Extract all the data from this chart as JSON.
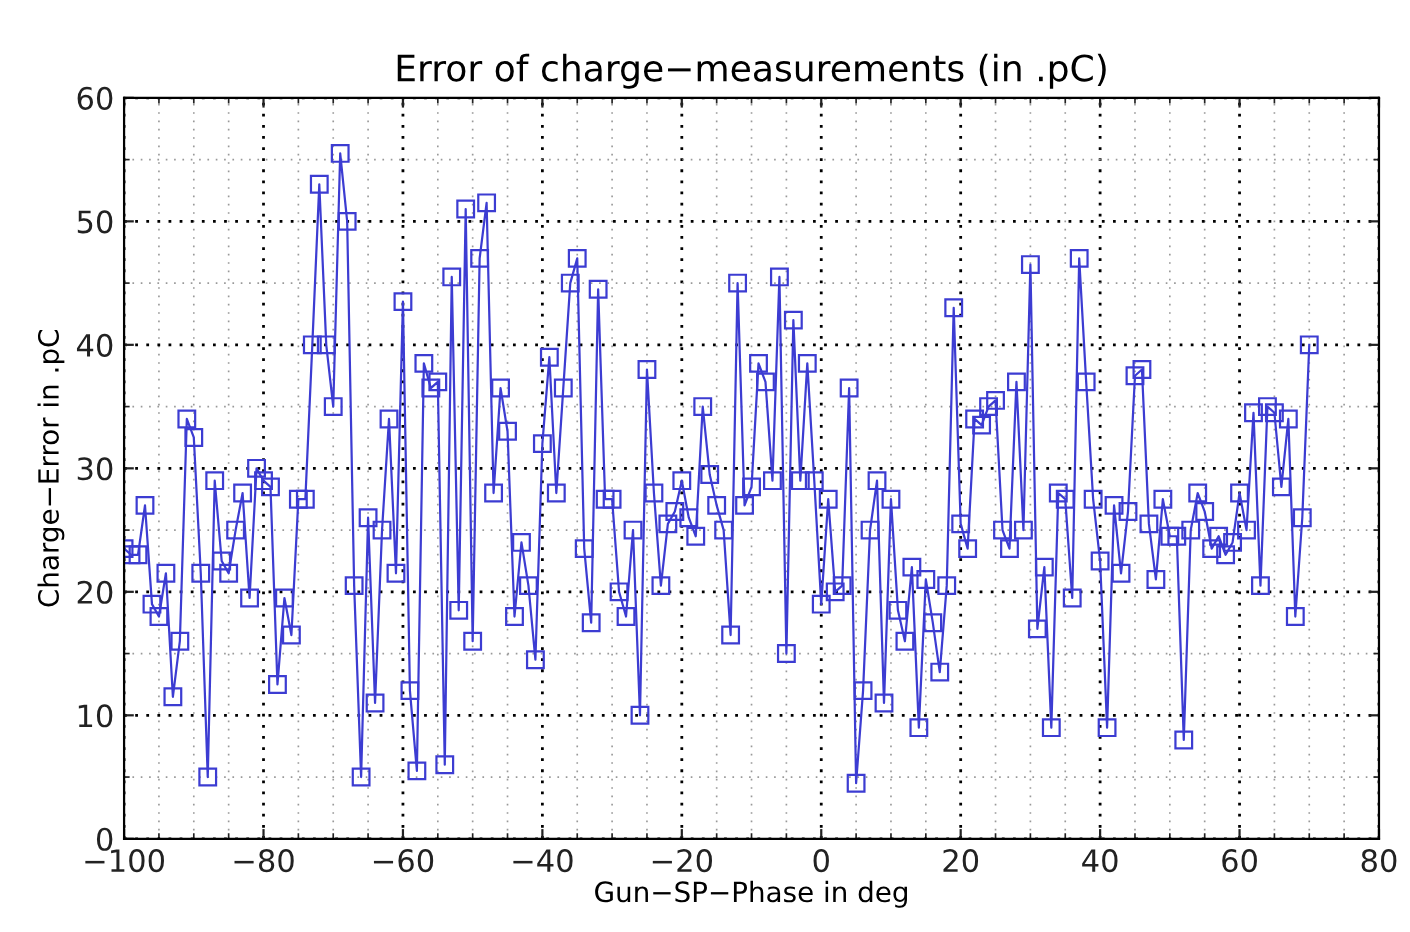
{
  "chart_data": {
    "type": "line",
    "title": "Error of charge−measurements (in .pC)",
    "xlabel": "Gun−SP−Phase in deg",
    "ylabel": "Charge−Error in .pC",
    "x": [
      -100,
      -99,
      -98,
      -97,
      -96,
      -95,
      -94,
      -93,
      -92,
      -91,
      -90,
      -89,
      -88,
      -87,
      -86,
      -85,
      -84,
      -83,
      -82,
      -81,
      -80,
      -79,
      -78,
      -77,
      -76,
      -75,
      -74,
      -73,
      -72,
      -71,
      -70,
      -69,
      -68,
      -67,
      -66,
      -65,
      -64,
      -63,
      -62,
      -61,
      -60,
      -59,
      -58,
      -57,
      -56,
      -55,
      -54,
      -53,
      -52,
      -51,
      -50,
      -49,
      -48,
      -47,
      -46,
      -45,
      -44,
      -43,
      -42,
      -41,
      -40,
      -39,
      -38,
      -37,
      -36,
      -35,
      -34,
      -33,
      -32,
      -31,
      -30,
      -29,
      -28,
      -27,
      -26,
      -25,
      -24,
      -23,
      -22,
      -21,
      -20,
      -19,
      -18,
      -17,
      -16,
      -15,
      -14,
      -13,
      -12,
      -11,
      -10,
      -9,
      -8,
      -7,
      -6,
      -5,
      -4,
      -3,
      -2,
      -1,
      0,
      1,
      2,
      3,
      4,
      5,
      6,
      7,
      8,
      9,
      10,
      11,
      12,
      13,
      14,
      15,
      16,
      17,
      18,
      19,
      20,
      21,
      22,
      23,
      24,
      25,
      26,
      27,
      28,
      29,
      30,
      31,
      32,
      33,
      34,
      35,
      36,
      37,
      38,
      39,
      40,
      41,
      42,
      43,
      44,
      45,
      46,
      47,
      48,
      49,
      50,
      51,
      52,
      53,
      54,
      55,
      56,
      57,
      58,
      59,
      60,
      61,
      62,
      63,
      64,
      65,
      66,
      67,
      68,
      69,
      70
    ],
    "series": [
      {
        "color": "#3c3cd2",
        "values": [
          23.5,
          23,
          23,
          27,
          19,
          18,
          21.5,
          11.5,
          16,
          34,
          32.5,
          21.5,
          5,
          29,
          22.5,
          21.5,
          25,
          28,
          19.5,
          30,
          29,
          28.5,
          12.5,
          19.5,
          16.5,
          27.5,
          27.5,
          40,
          53,
          40,
          35,
          55.5,
          50,
          20.5,
          5,
          26,
          11,
          25,
          34,
          21.5,
          43.5,
          12,
          5.5,
          38.5,
          36.5,
          37,
          6,
          45.5,
          18.5,
          51,
          16,
          47,
          51.5,
          28,
          36.5,
          33,
          18,
          24,
          20.5,
          14.5,
          32,
          39,
          28,
          36.5,
          45,
          47,
          23.5,
          17.5,
          44.5,
          27.5,
          27.5,
          20,
          18,
          25,
          10,
          38,
          28,
          20.5,
          25.5,
          26.5,
          29,
          26,
          24.5,
          35,
          29.5,
          27,
          25,
          16.5,
          45,
          27,
          28.5,
          38.5,
          37,
          29,
          45.5,
          15,
          42,
          29,
          38.5,
          29,
          19,
          27.5,
          20,
          20.5,
          36.5,
          4.5,
          12,
          25,
          29,
          11,
          27.5,
          18.5,
          16,
          22,
          9,
          21,
          17.5,
          13.5,
          20.5,
          43,
          25.5,
          23.5,
          34,
          33.5,
          35,
          35.5,
          25,
          23.5,
          37,
          25,
          46.5,
          17,
          22,
          9,
          28,
          27.5,
          19.5,
          47,
          37,
          27.5,
          22.5,
          9,
          27,
          21.5,
          26.5,
          37.5,
          38,
          25.5,
          21,
          27.5,
          24.5,
          24.5,
          8,
          25,
          28,
          26.5,
          23.5,
          24.5,
          23,
          24,
          28,
          25,
          34.5,
          20.5,
          35,
          34.5,
          28.5,
          34,
          18,
          26,
          40
        ]
      }
    ],
    "xlim": [
      -100,
      80
    ],
    "xticks": [
      -100,
      -80,
      -60,
      -40,
      -20,
      0,
      20,
      40,
      60,
      80
    ],
    "ylim": [
      0,
      60
    ],
    "yticks": [
      0,
      10,
      20,
      30,
      40,
      50,
      60
    ],
    "grid": true,
    "marker": "square",
    "line_style": "solid"
  }
}
